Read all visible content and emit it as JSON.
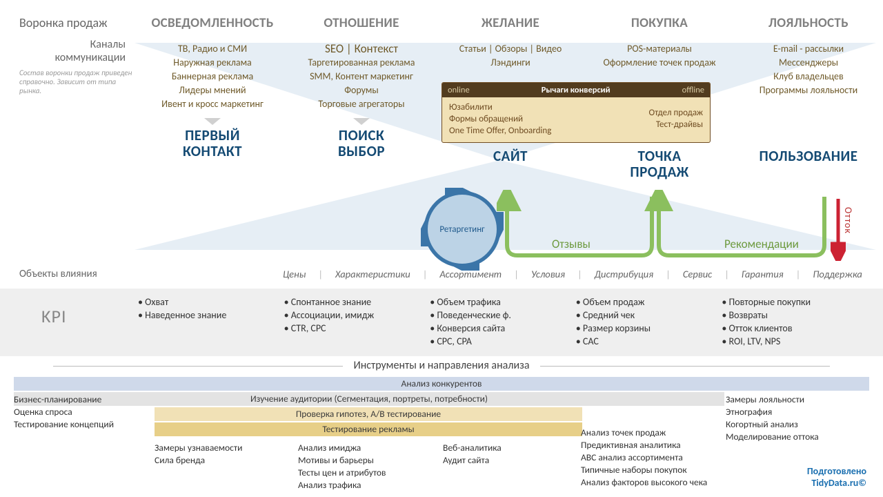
{
  "colors": {
    "stage_grey": "#808080",
    "brown_text": "#6f5a2a",
    "brown_box_border": "#6f4c22",
    "brown_box_bg": "#f1e1b6",
    "brown_head_bg": "#523c1f",
    "touch_blue": "#144a73",
    "retarget_disk": "#bcd3e6",
    "green": "#6d9a3e",
    "red": "#b33",
    "kpi_bg": "#efefef",
    "bar_blue": "#cfd9ea",
    "bar_grey": "#e3e3e3",
    "bar_beige": "#f1e1b6",
    "bar_gold": "#e7cf88"
  },
  "labels": {
    "funnel": "Воронка продаж",
    "channels": "Каналы\nкоммуникации",
    "channels_note": "Состав воронки продаж приведен справочно. Зависит от типа рынка.",
    "objects": "Объекты влияния",
    "kpi": "KPI",
    "tools": "Инструменты и направления анализа",
    "credit1": "Подготовлено",
    "credit2": "TidyData.ru©"
  },
  "stages": [
    {
      "name": "ОСВЕДОМЛЕННОСТЬ",
      "touch": "ПЕРВЫЙ\nКОНТАКТ",
      "channels": [
        "ТВ, Радио и СМИ",
        "Наружная реклама",
        "Баннерная реклама",
        "Лидеры мнений",
        "Ивент и кросс маркетинг"
      ],
      "kpi": [
        "Охват",
        "Наведенное знание"
      ]
    },
    {
      "name": "ОТНОШЕНИЕ",
      "touch": "ПОИСК\nВЫБОР",
      "channels": [
        "SEO | Контекст",
        "Таргетированная реклама",
        "SMM, Контент маркетинг",
        "Форумы",
        "Торговые агрегаторы"
      ],
      "kpi": [
        "Спонтанное знание",
        "Ассоциации, имидж",
        "CTR, CPC"
      ]
    },
    {
      "name": "ЖЕЛАНИЕ",
      "touch": "САЙТ",
      "channels": [
        "Статьи | Обзоры | Видео",
        "Лэндинги"
      ],
      "kpi": [
        "Объем трафика",
        "Поведенческие ф.",
        "Конверсия сайта",
        "CPC, CPA"
      ]
    },
    {
      "name": "ПОКУПКА",
      "touch": "ТОЧКА\nПРОДАЖ",
      "channels": [
        "POS-материалы",
        "Оформление точек продаж"
      ],
      "kpi": [
        "Объем продаж",
        "Средний чек",
        "Размер корзины",
        "CAC"
      ]
    },
    {
      "name": "ЛОЯЛЬНОСТЬ",
      "touch": "ПОЛЬЗОВАНИЕ",
      "channels": [
        "E-mail - рассылки",
        "Мессенджеры",
        "Клуб владельцев",
        "Программы лояльности"
      ],
      "kpi": [
        "Повторные покупки",
        "Возвраты",
        "Отток клиентов",
        "ROI, LTV, NPS"
      ]
    }
  ],
  "levers": {
    "head_left": "online",
    "head_mid": "Рычаги конверсий",
    "head_right": "offline",
    "left": [
      "Юзабилити",
      "Формы обращений",
      "One Time Offer, Onboarding"
    ],
    "right": [
      "Отдел продаж",
      "Тест-драйвы"
    ]
  },
  "retarget": "Ретаргетинг",
  "feedback": {
    "reviews": "Отзывы",
    "reco": "Рекомендации",
    "ottok": "Отток"
  },
  "objects_list": [
    "Цены",
    "Характеристики",
    "Ассортимент",
    "Условия",
    "Дистрибуция",
    "Сервис",
    "Гарантия",
    "Поддержка"
  ],
  "bars": {
    "b1": "Анализ конкурентов",
    "b2": "Изучение аудитории (Сегментация, портреты, потребности)",
    "b3": "Проверка гипотез, A/B тестирование",
    "b4": "Тестирование рекламы"
  },
  "bottom_cols": [
    [
      "Бизнес-планирование",
      "Оценка спроса",
      "Тестирование концепций"
    ],
    [
      "Замеры узнаваемости",
      "Сила бренда"
    ],
    [
      "Анализ имиджа",
      "Мотивы и барьеры",
      "Тесты цен и атрибутов",
      "Анализ трафика"
    ],
    [
      "Веб-аналитика",
      "Аудит сайта"
    ],
    [
      "Анализ точек продаж",
      "Предиктивная аналитика",
      "ABC анализ ассортимента",
      "Типичные наборы покупок",
      "Анализ факторов высокого чека"
    ],
    [
      "Замеры лояльности",
      "Этнография",
      "Когортный анализ",
      "Моделирование оттока"
    ]
  ]
}
